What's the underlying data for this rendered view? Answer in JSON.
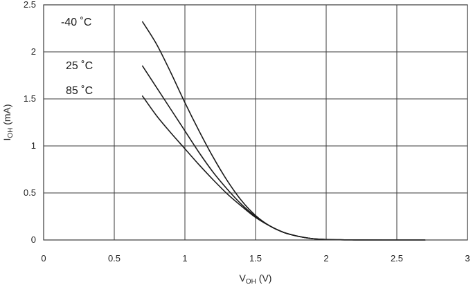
{
  "chart_data": {
    "type": "line",
    "xlabel": "V",
    "xlabel_sub": "OH",
    "xlabel_unit": " (V)",
    "ylabel": "I",
    "ylabel_sub": "OH",
    "ylabel_unit": " (mA)",
    "xlim": [
      0,
      3
    ],
    "ylim": [
      0,
      2.5
    ],
    "x_ticks": [
      "0",
      "0.5",
      "1",
      "1.5",
      "2",
      "2.5",
      "3"
    ],
    "y_ticks": [
      "0",
      "0.5",
      "1",
      "1.5",
      "2",
      "2.5"
    ],
    "grid": true,
    "series": [
      {
        "name": "-40 ˚C",
        "x": [
          0.7,
          0.8,
          0.9,
          1.0,
          1.1,
          1.2,
          1.3,
          1.4,
          1.5,
          1.6,
          1.7,
          1.8,
          1.9,
          2.0,
          2.1,
          2.2,
          2.4,
          2.7
        ],
        "y": [
          2.32,
          2.08,
          1.78,
          1.46,
          1.16,
          0.88,
          0.63,
          0.42,
          0.26,
          0.15,
          0.08,
          0.04,
          0.015,
          0.005,
          0.002,
          0.001,
          0.0,
          0.0
        ]
      },
      {
        "name": "25 ˚C",
        "x": [
          0.7,
          0.8,
          0.9,
          1.0,
          1.1,
          1.2,
          1.3,
          1.4,
          1.5,
          1.6,
          1.7,
          1.8,
          1.9,
          2.0,
          2.1,
          2.2,
          2.4,
          2.7
        ],
        "y": [
          1.85,
          1.62,
          1.39,
          1.16,
          0.93,
          0.72,
          0.54,
          0.38,
          0.25,
          0.15,
          0.08,
          0.04,
          0.015,
          0.005,
          0.002,
          0.001,
          0.0,
          0.0
        ]
      },
      {
        "name": "85 ˚C",
        "x": [
          0.7,
          0.8,
          0.9,
          1.0,
          1.1,
          1.2,
          1.3,
          1.4,
          1.5,
          1.6,
          1.7,
          1.8,
          1.9,
          2.0,
          2.1,
          2.2,
          2.4,
          2.7
        ],
        "y": [
          1.53,
          1.32,
          1.14,
          0.97,
          0.8,
          0.64,
          0.49,
          0.36,
          0.24,
          0.15,
          0.08,
          0.04,
          0.015,
          0.005,
          0.002,
          0.001,
          0.0,
          0.0
        ]
      }
    ]
  }
}
